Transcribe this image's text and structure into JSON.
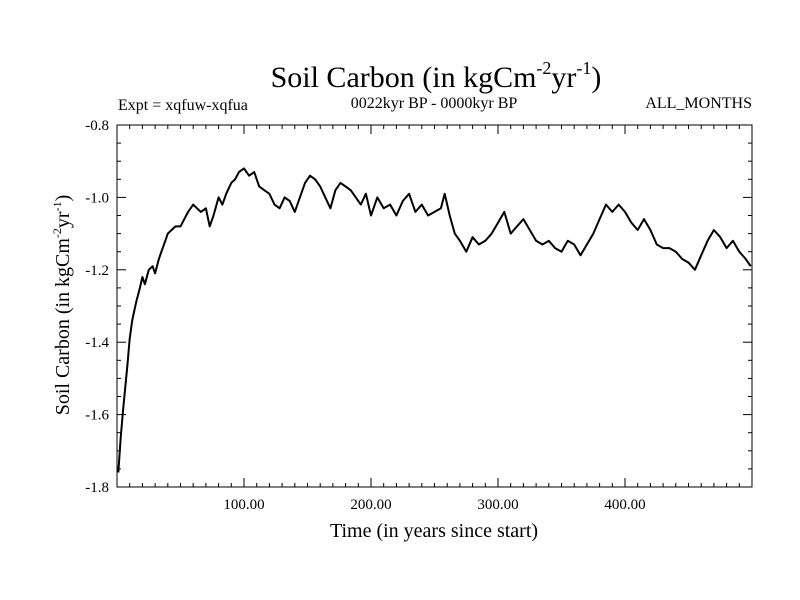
{
  "chart_data": {
    "type": "line",
    "title": {
      "main": "Soil Carbon (in kgCm",
      "sup1": "-2",
      "mid": "yr",
      "sup2": "-1",
      "end": ")"
    },
    "subtitle_left": "Expt = xqfuw-xqfua",
    "subtitle_center": "0022kyr BP - 0000kyr BP",
    "subtitle_right": "ALL_MONTHS",
    "xlabel": "Time (in years since start)",
    "ylabel": {
      "main": "Soil Carbon (in kgCm",
      "sup1": "-2",
      "mid": "yr",
      "sup2": "-1",
      "end": ")"
    },
    "xlim": [
      0,
      500
    ],
    "ylim": [
      -1.8,
      -0.8
    ],
    "xticks": [
      100,
      200,
      300,
      400
    ],
    "xtick_labels": [
      "100.00",
      "200.00",
      "300.00",
      "400.00"
    ],
    "yticks": [
      -1.8,
      -1.6,
      -1.4,
      -1.2,
      -1.0,
      -0.8
    ],
    "ytick_labels": [
      "-1.8",
      "-1.6",
      "-1.4",
      "-1.2",
      "-1.0",
      "-0.8"
    ],
    "series": [
      {
        "name": "Soil Carbon",
        "color": "#000000",
        "x": [
          1,
          3,
          5,
          8,
          10,
          12,
          15,
          18,
          20,
          22,
          25,
          28,
          30,
          33,
          35,
          38,
          40,
          43,
          46,
          50,
          53,
          56,
          60,
          63,
          66,
          70,
          73,
          76,
          80,
          83,
          86,
          90,
          93,
          96,
          100,
          104,
          108,
          112,
          116,
          120,
          124,
          128,
          132,
          136,
          140,
          144,
          148,
          152,
          156,
          160,
          164,
          168,
          172,
          176,
          180,
          184,
          188,
          192,
          196,
          200,
          205,
          210,
          215,
          220,
          225,
          230,
          235,
          240,
          245,
          250,
          255,
          258,
          262,
          266,
          270,
          275,
          280,
          285,
          290,
          295,
          300,
          305,
          310,
          315,
          320,
          325,
          330,
          335,
          340,
          345,
          350,
          355,
          360,
          365,
          370,
          375,
          380,
          385,
          390,
          395,
          400,
          405,
          410,
          415,
          420,
          425,
          430,
          435,
          440,
          445,
          450,
          455,
          460,
          465,
          470,
          475,
          480,
          485,
          490,
          495,
          499
        ],
        "values": [
          -1.76,
          -1.66,
          -1.58,
          -1.47,
          -1.39,
          -1.34,
          -1.29,
          -1.25,
          -1.22,
          -1.24,
          -1.2,
          -1.19,
          -1.21,
          -1.17,
          -1.15,
          -1.12,
          -1.1,
          -1.09,
          -1.08,
          -1.08,
          -1.06,
          -1.04,
          -1.02,
          -1.03,
          -1.04,
          -1.03,
          -1.08,
          -1.05,
          -1.0,
          -1.02,
          -0.99,
          -0.96,
          -0.95,
          -0.93,
          -0.92,
          -0.94,
          -0.93,
          -0.97,
          -0.98,
          -0.99,
          -1.02,
          -1.03,
          -1.0,
          -1.01,
          -1.04,
          -1.0,
          -0.96,
          -0.94,
          -0.95,
          -0.97,
          -1.0,
          -1.03,
          -0.98,
          -0.96,
          -0.97,
          -0.98,
          -1.0,
          -1.02,
          -0.99,
          -1.05,
          -1.0,
          -1.03,
          -1.02,
          -1.05,
          -1.01,
          -0.99,
          -1.04,
          -1.02,
          -1.05,
          -1.04,
          -1.03,
          -0.99,
          -1.05,
          -1.1,
          -1.12,
          -1.15,
          -1.11,
          -1.13,
          -1.12,
          -1.1,
          -1.07,
          -1.04,
          -1.1,
          -1.08,
          -1.06,
          -1.09,
          -1.12,
          -1.13,
          -1.12,
          -1.14,
          -1.15,
          -1.12,
          -1.13,
          -1.16,
          -1.13,
          -1.1,
          -1.06,
          -1.02,
          -1.04,
          -1.02,
          -1.04,
          -1.07,
          -1.09,
          -1.06,
          -1.09,
          -1.13,
          -1.14,
          -1.14,
          -1.15,
          -1.17,
          -1.18,
          -1.2,
          -1.16,
          -1.12,
          -1.09,
          -1.11,
          -1.14,
          -1.12,
          -1.15,
          -1.17,
          -1.19
        ]
      }
    ]
  }
}
